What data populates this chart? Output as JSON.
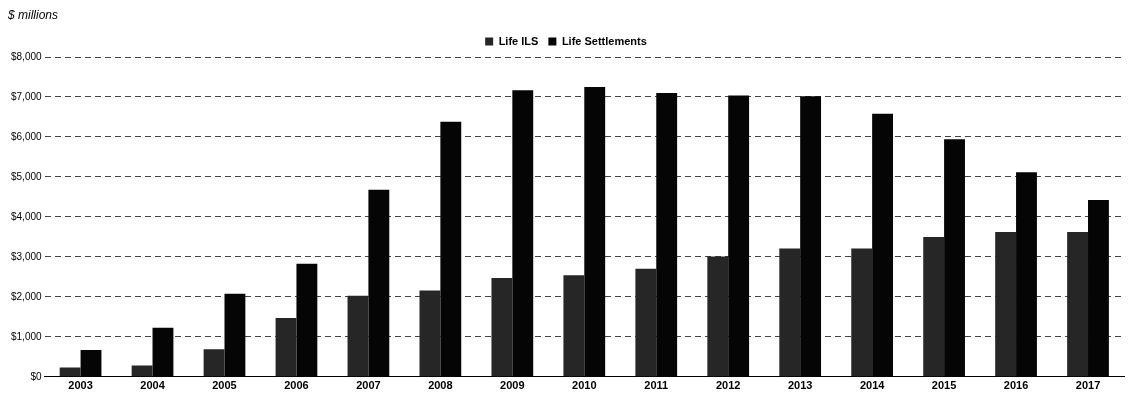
{
  "chart_data": {
    "type": "bar",
    "ylabel": "$ millions",
    "categories": [
      "2003",
      "2004",
      "2005",
      "2006",
      "2007",
      "2008",
      "2009",
      "2010",
      "2011",
      "2012",
      "2013",
      "2014",
      "2015",
      "2016",
      "2017"
    ],
    "series": [
      {
        "name": "Life ILS",
        "color": "#262626",
        "values": [
          230,
          280,
          690,
          1470,
          2030,
          2160,
          2470,
          2540,
          2700,
          3010,
          3210,
          3210,
          3500,
          3620,
          3620
        ]
      },
      {
        "name": "Life Settlements",
        "color": "#050505",
        "values": [
          670,
          1230,
          2080,
          2830,
          4680,
          6380,
          7170,
          7250,
          7100,
          7040,
          7020,
          6580,
          5940,
          5120,
          4420
        ]
      }
    ],
    "ylim": [
      0,
      8000
    ],
    "yticks": [
      {
        "value": 0,
        "label": "$0"
      },
      {
        "value": 1000,
        "label": "$1,000"
      },
      {
        "value": 2000,
        "label": "$2,000"
      },
      {
        "value": 3000,
        "label": "$3,000"
      },
      {
        "value": 4000,
        "label": "$4,000"
      },
      {
        "value": 5000,
        "label": "$5,000"
      },
      {
        "value": 6000,
        "label": "$6,000"
      },
      {
        "value": 7000,
        "label": "$7,000"
      },
      {
        "value": 8000,
        "label": "$8,000"
      }
    ],
    "grid": "y",
    "legend": "top"
  }
}
